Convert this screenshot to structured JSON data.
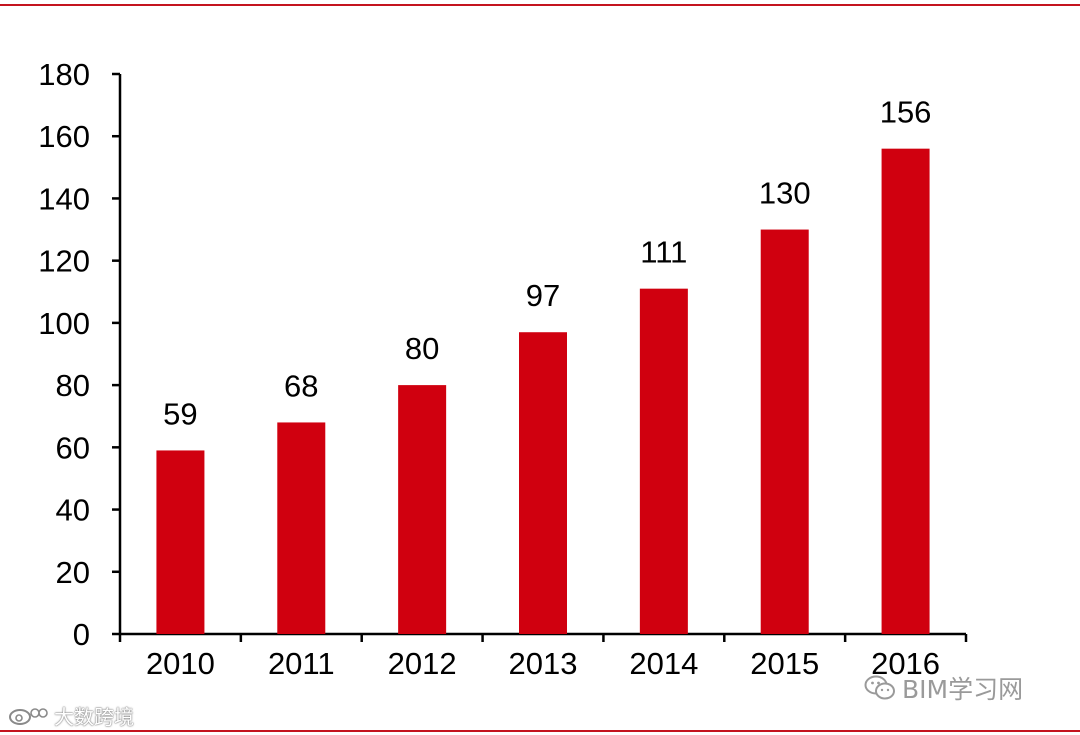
{
  "chart_data": {
    "type": "bar",
    "title": "",
    "xlabel": "",
    "ylabel": "",
    "categories": [
      "2010",
      "2011",
      "2012",
      "2013",
      "2014",
      "2015",
      "2016"
    ],
    "values": [
      59,
      68,
      80,
      97,
      111,
      130,
      156
    ],
    "ylim": [
      0,
      180
    ],
    "yticks": [
      0,
      20,
      40,
      60,
      80,
      100,
      120,
      140,
      160,
      180
    ],
    "grid": false,
    "legend": "none",
    "data_labels": true,
    "bar_color": "#d0000f"
  },
  "watermarks": {
    "right_text": "BIM学习网",
    "right_icon": "wechat-icon",
    "left_text": "大数跨境",
    "left_icon": "weibo-icon"
  },
  "colors": {
    "rule": "#c4141f",
    "axis": "#000000"
  }
}
